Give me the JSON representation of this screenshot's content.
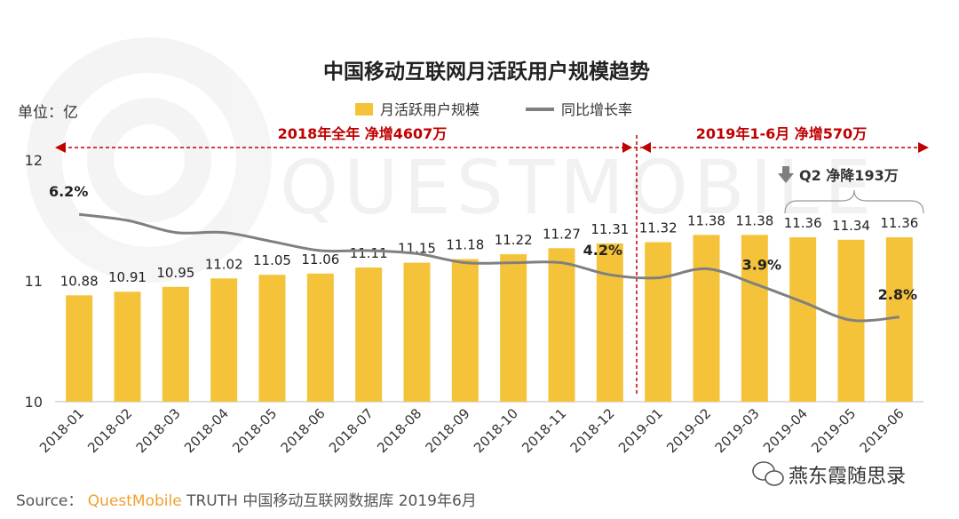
{
  "chart_data": {
    "type": "bar",
    "title": "中国移动互联网月活跃用户规模趋势",
    "unit_label": "单位：亿",
    "categories": [
      "2018-01",
      "2018-02",
      "2018-03",
      "2018-04",
      "2018-05",
      "2018-06",
      "2018-07",
      "2018-08",
      "2018-09",
      "2018-10",
      "2018-11",
      "2018-12",
      "2019-01",
      "2019-02",
      "2019-03",
      "2019-04",
      "2019-05",
      "2019-06"
    ],
    "series": [
      {
        "name": "月活跃用户规模",
        "type": "bar",
        "axis": "left",
        "color": "#F5C33A",
        "values": [
          10.88,
          10.91,
          10.95,
          11.02,
          11.05,
          11.06,
          11.11,
          11.15,
          11.18,
          11.22,
          11.27,
          11.31,
          11.32,
          11.38,
          11.38,
          11.36,
          11.34,
          11.36
        ],
        "labels": [
          "10.88",
          "10.91",
          "10.95",
          "11.02",
          "11.05",
          "11.06",
          "11.11",
          "11.15",
          "11.18",
          "11.22",
          "11.27",
          "11.31",
          "11.32",
          "11.38",
          "11.38",
          "11.36",
          "11.34",
          "11.36"
        ]
      },
      {
        "name": "同比增长率",
        "type": "line",
        "axis": "right",
        "color": "#808080",
        "values": [
          6.2,
          6.0,
          5.6,
          5.6,
          5.3,
          5.0,
          5.0,
          4.9,
          4.6,
          4.6,
          4.6,
          4.2,
          4.1,
          4.4,
          3.9,
          3.3,
          2.7,
          2.8
        ],
        "labeled_points": [
          {
            "index": 0,
            "text": "6.2%"
          },
          {
            "index": 11,
            "text": "4.2%"
          },
          {
            "index": 14,
            "text": "3.9%"
          },
          {
            "index": 17,
            "text": "2.8%"
          }
        ]
      }
    ],
    "y_axis_left": {
      "min": 10,
      "max": 12,
      "ticks": [
        "10",
        "11",
        "12"
      ]
    },
    "y_axis_right": {
      "min": 0,
      "max": 8,
      "shown": false
    },
    "grid": false,
    "legend_position": "top-center",
    "annotations": {
      "period_2018": "2018年全年  净增4607万",
      "period_2019": "2019年1-6月  净增570万",
      "q2_note": "Q2 净降193万",
      "annotation_color": "#C00000"
    },
    "source_prefix": "Source：",
    "source_brand": "QuestMobile",
    "source_rest": " TRUTH 中国移动互联网数据库 2019年6月",
    "watermark_text": "QUESTMOBILE",
    "wechat_text": "燕东霞随思录"
  }
}
